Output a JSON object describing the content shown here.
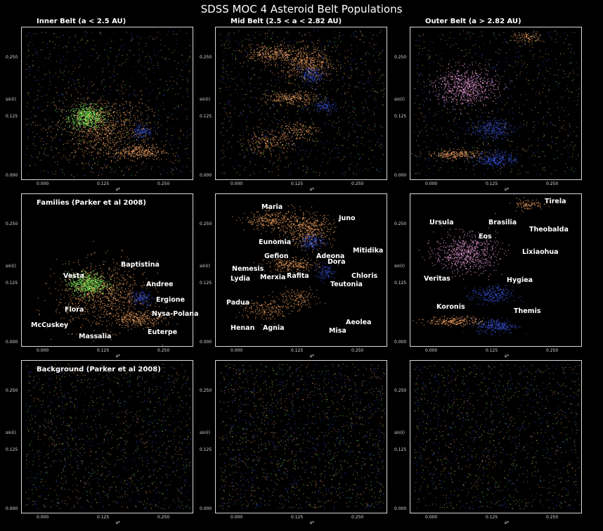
{
  "figure": {
    "title": "SDSS MOC 4 Asteroid Belt Populations"
  },
  "rows": [
    {
      "cols": [
        {
          "title": "Inner Belt (a < 2.5 AU)"
        },
        {
          "title": "Mid Belt (2.5 < a < 2.82 AU)"
        },
        {
          "title": "Outer Belt (a > 2.82 AU)"
        }
      ]
    },
    {
      "cols": [
        {
          "title": "Families (Parker et al 2008)"
        },
        {
          "title": ""
        },
        {
          "title": ""
        }
      ]
    },
    {
      "cols": [
        {
          "title": "Background (Parker et al 2008)"
        },
        {
          "title": ""
        },
        {
          "title": ""
        }
      ]
    }
  ],
  "axes": {
    "ylabel": "sin(i)",
    "xlabel": "a*",
    "xticks": [
      "0.000",
      "0.125",
      "0.250"
    ],
    "yticks": [
      "0.000",
      "0.125",
      "0.250"
    ]
  },
  "colors": {
    "orange": "#f0a060",
    "blue": "#3a55e0",
    "green": "#7cf05a",
    "pink": "#f0a0e0",
    "background": "#000000"
  },
  "chart_data": [
    {
      "type": "scatter",
      "panel": "inner-belt",
      "xlabel": "a*",
      "ylabel": "sin(i)",
      "xlim": [
        -0.02,
        0.3
      ],
      "ylim": [
        -0.01,
        0.3
      ],
      "clusters": [
        {
          "name": "Vesta",
          "x": 0.1,
          "y": 0.115,
          "sx": 0.018,
          "sy": 0.012,
          "color": "green",
          "n": 600
        },
        {
          "name": "Flora-region",
          "x": 0.13,
          "y": 0.09,
          "sx": 0.045,
          "sy": 0.035,
          "color": "orange",
          "n": 900
        },
        {
          "name": "Nysa-Polana",
          "x": 0.2,
          "y": 0.04,
          "sx": 0.025,
          "sy": 0.008,
          "color": "orange",
          "n": 300
        },
        {
          "name": "Erigone",
          "x": 0.205,
          "y": 0.085,
          "sx": 0.01,
          "sy": 0.008,
          "color": "blue",
          "n": 120
        },
        {
          "name": "Inner-background",
          "x": 0.14,
          "y": 0.14,
          "sx": 0.08,
          "sy": 0.08,
          "color": "mixed",
          "n": 900
        }
      ]
    },
    {
      "type": "scatter",
      "panel": "mid-belt",
      "xlabel": "a*",
      "ylabel": "sin(i)",
      "xlim": [
        -0.02,
        0.3
      ],
      "ylim": [
        -0.01,
        0.3
      ],
      "clusters": [
        {
          "name": "Eunomia",
          "x": 0.15,
          "y": 0.23,
          "sx": 0.025,
          "sy": 0.018,
          "color": "orange",
          "n": 500
        },
        {
          "name": "Maria",
          "x": 0.08,
          "y": 0.25,
          "sx": 0.025,
          "sy": 0.01,
          "color": "orange",
          "n": 300
        },
        {
          "name": "Gefion",
          "x": 0.12,
          "y": 0.155,
          "sx": 0.025,
          "sy": 0.007,
          "color": "orange",
          "n": 250
        },
        {
          "name": "Adeona",
          "x": 0.16,
          "y": 0.205,
          "sx": 0.012,
          "sy": 0.008,
          "color": "blue",
          "n": 150
        },
        {
          "name": "Dora",
          "x": 0.185,
          "y": 0.14,
          "sx": 0.01,
          "sy": 0.008,
          "color": "blue",
          "n": 100
        },
        {
          "name": "Merxia",
          "x": 0.13,
          "y": 0.085,
          "sx": 0.02,
          "sy": 0.01,
          "color": "orange",
          "n": 150
        },
        {
          "name": "Padua/Agnia",
          "x": 0.07,
          "y": 0.06,
          "sx": 0.025,
          "sy": 0.012,
          "color": "orange",
          "n": 200
        },
        {
          "name": "Mid-background",
          "x": 0.14,
          "y": 0.15,
          "sx": 0.09,
          "sy": 0.08,
          "color": "mixed",
          "n": 1100
        }
      ]
    },
    {
      "type": "scatter",
      "panel": "outer-belt",
      "xlabel": "a*",
      "ylabel": "sin(i)",
      "xlim": [
        -0.02,
        0.3
      ],
      "ylim": [
        -0.01,
        0.3
      ],
      "clusters": [
        {
          "name": "Eos",
          "x": 0.08,
          "y": 0.18,
          "sx": 0.03,
          "sy": 0.02,
          "color": "pink",
          "n": 700
        },
        {
          "name": "Koronis",
          "x": 0.06,
          "y": 0.035,
          "sx": 0.028,
          "sy": 0.005,
          "color": "orange",
          "n": 250
        },
        {
          "name": "Hygiea",
          "x": 0.13,
          "y": 0.09,
          "sx": 0.02,
          "sy": 0.01,
          "color": "blue",
          "n": 250
        },
        {
          "name": "Themis",
          "x": 0.14,
          "y": 0.025,
          "sx": 0.02,
          "sy": 0.008,
          "color": "blue",
          "n": 250
        },
        {
          "name": "Tirela",
          "x": 0.2,
          "y": 0.285,
          "sx": 0.015,
          "sy": 0.006,
          "color": "orange",
          "n": 100
        },
        {
          "name": "Outer-background",
          "x": 0.14,
          "y": 0.15,
          "sx": 0.09,
          "sy": 0.08,
          "color": "mixed",
          "n": 900
        }
      ]
    }
  ],
  "families": {
    "inner": [
      {
        "name": "Vesta",
        "lx": 60,
        "ly": 112
      },
      {
        "name": "Baptistina",
        "lx": 142,
        "ly": 96
      },
      {
        "name": "Andree",
        "lx": 178,
        "ly": 124
      },
      {
        "name": "Ergione",
        "lx": 192,
        "ly": 146
      },
      {
        "name": "Flora",
        "lx": 62,
        "ly": 160
      },
      {
        "name": "Nysa-Polana",
        "lx": 186,
        "ly": 166
      },
      {
        "name": "McCuskey",
        "lx": 14,
        "ly": 182
      },
      {
        "name": "Euterpe",
        "lx": 180,
        "ly": 192
      },
      {
        "name": "Massalia",
        "lx": 82,
        "ly": 198
      }
    ],
    "mid": [
      {
        "name": "Maria",
        "lx": 66,
        "ly": 14
      },
      {
        "name": "Juno",
        "lx": 176,
        "ly": 30
      },
      {
        "name": "Eunomia",
        "lx": 62,
        "ly": 64
      },
      {
        "name": "Adeona",
        "lx": 144,
        "ly": 84
      },
      {
        "name": "Mitidika",
        "lx": 196,
        "ly": 76
      },
      {
        "name": "Gefion",
        "lx": 70,
        "ly": 84
      },
      {
        "name": "Dora",
        "lx": 160,
        "ly": 92
      },
      {
        "name": "Nemesis",
        "lx": 24,
        "ly": 102
      },
      {
        "name": "Rafita",
        "lx": 102,
        "ly": 112
      },
      {
        "name": "Chloris",
        "lx": 194,
        "ly": 112
      },
      {
        "name": "Lydia",
        "lx": 22,
        "ly": 116
      },
      {
        "name": "Merxia",
        "lx": 64,
        "ly": 114
      },
      {
        "name": "Teutonia",
        "lx": 164,
        "ly": 124
      },
      {
        "name": "Padua",
        "lx": 16,
        "ly": 150
      },
      {
        "name": "Aeolea",
        "lx": 186,
        "ly": 178
      },
      {
        "name": "Henan",
        "lx": 22,
        "ly": 186
      },
      {
        "name": "Agnia",
        "lx": 68,
        "ly": 186
      },
      {
        "name": "Misa",
        "lx": 162,
        "ly": 190
      }
    ],
    "outer": [
      {
        "name": "Tirela",
        "lx": 192,
        "ly": 6
      },
      {
        "name": "Ursula",
        "lx": 28,
        "ly": 36
      },
      {
        "name": "Brasilia",
        "lx": 112,
        "ly": 36
      },
      {
        "name": "Theobalda",
        "lx": 170,
        "ly": 46
      },
      {
        "name": "Eos",
        "lx": 98,
        "ly": 56
      },
      {
        "name": "Lixiaohua",
        "lx": 160,
        "ly": 78
      },
      {
        "name": "Veritas",
        "lx": 20,
        "ly": 116
      },
      {
        "name": "Hygiea",
        "lx": 138,
        "ly": 118
      },
      {
        "name": "Koronis",
        "lx": 38,
        "ly": 156
      },
      {
        "name": "Themis",
        "lx": 148,
        "ly": 162
      }
    ]
  }
}
